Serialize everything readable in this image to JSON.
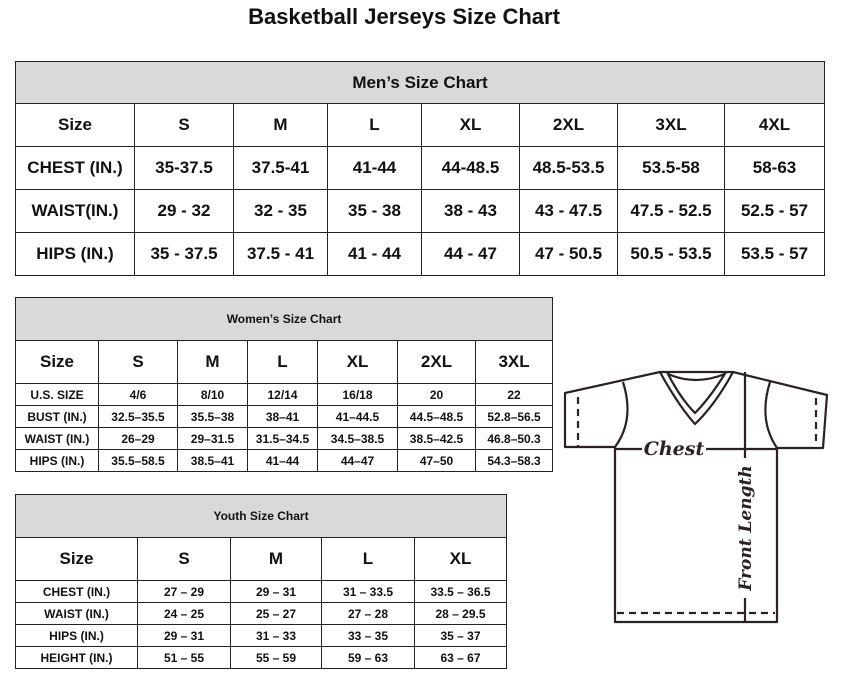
{
  "title": "Basketball Jerseys Size Chart",
  "mens": {
    "caption": "Men’s Size Chart",
    "header": [
      "Size",
      "S",
      "M",
      "L",
      "XL",
      "2XL",
      "3XL",
      "4XL"
    ],
    "rows": [
      [
        "CHEST (IN.)",
        "35-37.5",
        "37.5-41",
        "41-44",
        "44-48.5",
        "48.5-53.5",
        "53.5-58",
        "58-63"
      ],
      [
        "WAIST(IN.)",
        "29 - 32",
        "32 - 35",
        "35 - 38",
        "38 - 43",
        "43 - 47.5",
        "47.5 - 52.5",
        "52.5 - 57"
      ],
      [
        "HIPS (IN.)",
        "35 - 37.5",
        "37.5 - 41",
        "41 - 44",
        "44 - 47",
        "47 - 50.5",
        "50.5 - 53.5",
        "53.5 - 57"
      ]
    ]
  },
  "womens": {
    "caption": "Women’s Size Chart",
    "header": [
      "Size",
      "S",
      "M",
      "L",
      "XL",
      "2XL",
      "3XL"
    ],
    "rows": [
      [
        "U.S. SIZE",
        "4/6",
        "8/10",
        "12/14",
        "16/18",
        "20",
        "22"
      ],
      [
        "BUST (IN.)",
        "32.5–35.5",
        "35.5–38",
        "38–41",
        "41–44.5",
        "44.5–48.5",
        "52.8–56.5"
      ],
      [
        "WAIST (IN.)",
        "26–29",
        "29–31.5",
        "31.5–34.5",
        "34.5–38.5",
        "38.5–42.5",
        "46.8–50.3"
      ],
      [
        "HIPS (IN.)",
        "35.5–58.5",
        "38.5–41",
        "41–44",
        "44–47",
        "47–50",
        "54.3–58.3"
      ]
    ]
  },
  "youth": {
    "caption": "Youth Size Chart",
    "header": [
      "Size",
      "S",
      "M",
      "L",
      "XL"
    ],
    "rows": [
      [
        "CHEST (IN.)",
        "27 – 29",
        "29 – 31",
        "31 – 33.5",
        "33.5 – 36.5"
      ],
      [
        "WAIST (IN.)",
        "24 – 25",
        "25 – 27",
        "27 – 28",
        "28 – 29.5"
      ],
      [
        "HIPS (IN.)",
        "29 – 31",
        "31 – 33",
        "33 – 35",
        "35 – 37"
      ],
      [
        "HEIGHT (IN.)",
        "51 – 55",
        "55 – 59",
        "59 – 63",
        "63 – 67"
      ]
    ]
  },
  "diagram": {
    "chest_label": "Chest",
    "length_label": "Front Length"
  }
}
